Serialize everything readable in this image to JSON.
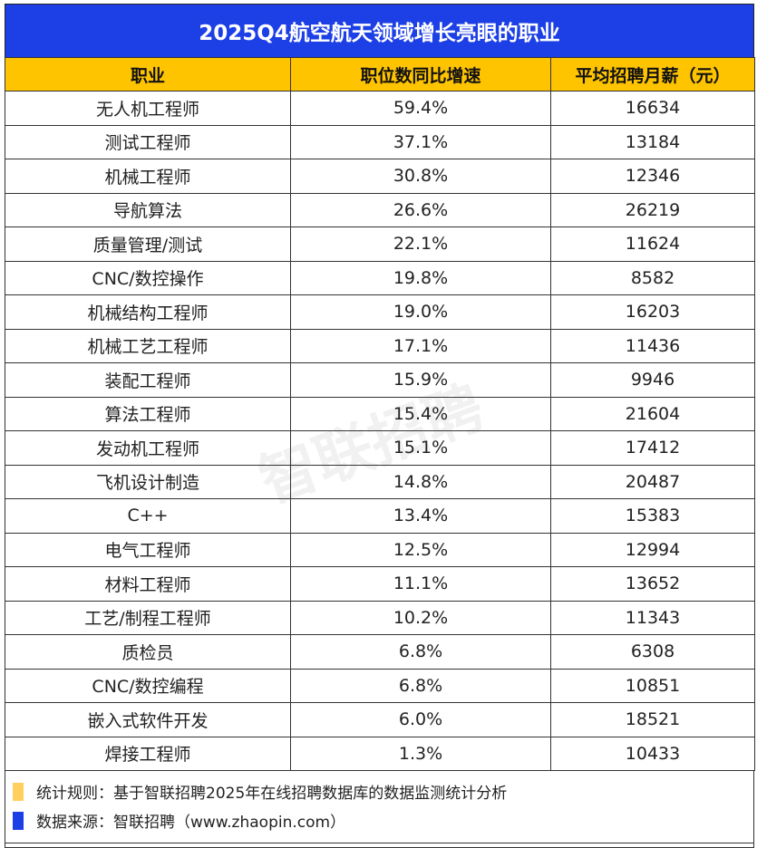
{
  "title": "2025Q4航空航天领域增长亮眼的职业",
  "colors": {
    "title_bg": "#1d3fe6",
    "header_bg": "#ffc400",
    "brand": "#1d3fe6"
  },
  "chart_data": {
    "type": "table",
    "title": "2025Q4航空航天领域增长亮眼的职业",
    "columns": [
      "职业",
      "职位数同比增速",
      "平均招聘月薪（元）"
    ],
    "rows": [
      [
        "无人机工程师",
        "59.4%",
        "16634"
      ],
      [
        "测试工程师",
        "37.1%",
        "13184"
      ],
      [
        "机械工程师",
        "30.8%",
        "12346"
      ],
      [
        "导航算法",
        "26.6%",
        "26219"
      ],
      [
        "质量管理/测试",
        "22.1%",
        "11624"
      ],
      [
        "CNC/数控操作",
        "19.8%",
        "8582"
      ],
      [
        "机械结构工程师",
        "19.0%",
        "16203"
      ],
      [
        "机械工艺工程师",
        "17.1%",
        "11436"
      ],
      [
        "装配工程师",
        "15.9%",
        "9946"
      ],
      [
        "算法工程师",
        "15.4%",
        "21604"
      ],
      [
        "发动机工程师",
        "15.1%",
        "17412"
      ],
      [
        "飞机设计制造",
        "14.8%",
        "20487"
      ],
      [
        "C++",
        "13.4%",
        "15383"
      ],
      [
        "电气工程师",
        "12.5%",
        "12994"
      ],
      [
        "材料工程师",
        "11.1%",
        "13652"
      ],
      [
        "工艺/制程工程师",
        "10.2%",
        "11343"
      ],
      [
        "质检员",
        "6.8%",
        "6308"
      ],
      [
        "CNC/数控编程",
        "6.8%",
        "10851"
      ],
      [
        "嵌入式软件开发",
        "6.0%",
        "18521"
      ],
      [
        "焊接工程师",
        "1.3%",
        "10433"
      ]
    ]
  },
  "footer": {
    "rule": "统计规则：基于智联招聘2025年在线招聘数据库的数据监测统计分析",
    "source": "数据来源：智联招聘（www.zhaopin.com）",
    "rule_color": "#ffd060",
    "source_color": "#1d3fe6",
    "logo": "智联招聘"
  },
  "watermark": "智联招聘"
}
